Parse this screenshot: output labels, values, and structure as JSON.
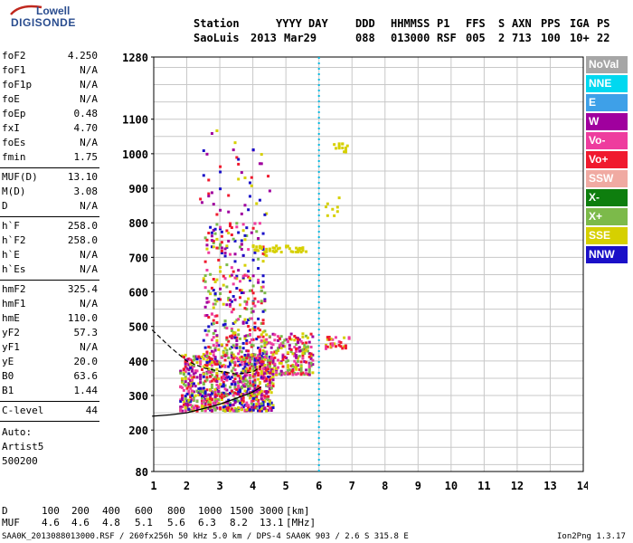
{
  "logo": {
    "line1": "Lowell",
    "line2": "DIGISONDE"
  },
  "header": {
    "labels": [
      "Station",
      "YYYY",
      "DAY",
      "DDD",
      "HHMMSS",
      "P1",
      "FFS",
      "S",
      "AXN",
      "PPS",
      "IGA",
      "PS"
    ],
    "values": [
      "SaoLuis",
      "2013",
      "Mar29",
      "088",
      "013000",
      "RSF",
      "005",
      "2",
      "713",
      "100",
      "10+",
      "22"
    ]
  },
  "params": [
    {
      "group": [
        {
          "k": "foF2",
          "v": "4.250"
        },
        {
          "k": "foF1",
          "v": "N/A"
        },
        {
          "k": "foF1p",
          "v": "N/A"
        },
        {
          "k": "foE",
          "v": "N/A"
        },
        {
          "k": "foEp",
          "v": "0.48"
        },
        {
          "k": "fxI",
          "v": "4.70"
        },
        {
          "k": "foEs",
          "v": "N/A"
        },
        {
          "k": "fmin",
          "v": "1.75"
        }
      ]
    },
    {
      "group": [
        {
          "k": "MUF(D)",
          "v": "13.10"
        },
        {
          "k": "M(D)",
          "v": "3.08"
        },
        {
          "k": "D",
          "v": "N/A"
        }
      ]
    },
    {
      "group": [
        {
          "k": "h`F",
          "v": "258.0"
        },
        {
          "k": "h`F2",
          "v": "258.0"
        },
        {
          "k": "h`E",
          "v": "N/A"
        },
        {
          "k": "h`Es",
          "v": "N/A"
        }
      ]
    },
    {
      "group": [
        {
          "k": "hmF2",
          "v": "325.4"
        },
        {
          "k": "hmF1",
          "v": "N/A"
        },
        {
          "k": "hmE",
          "v": "110.0"
        },
        {
          "k": "yF2",
          "v": "57.3"
        },
        {
          "k": "yF1",
          "v": "N/A"
        },
        {
          "k": "yE",
          "v": "20.0"
        },
        {
          "k": "B0",
          "v": "63.6"
        },
        {
          "k": "B1",
          "v": "1.44"
        }
      ]
    },
    {
      "group": [
        {
          "k": "C-level",
          "v": "44"
        }
      ]
    }
  ],
  "side_notes": [
    "Auto:",
    "Artist5",
    "500200"
  ],
  "legend": [
    {
      "label": "NoVal",
      "color": "#a6a6a6"
    },
    {
      "label": "NNE",
      "color": "#00d8f0"
    },
    {
      "label": "E",
      "color": "#3ea0e8"
    },
    {
      "label": "W",
      "color": "#a0009e"
    },
    {
      "label": "Vo-",
      "color": "#ee3c9e"
    },
    {
      "label": "Vo+",
      "color": "#f01a2e"
    },
    {
      "label": "SSW",
      "color": "#f0aaa2"
    },
    {
      "label": "X-",
      "color": "#0e7e0e"
    },
    {
      "label": "X+",
      "color": "#7cba4a"
    },
    {
      "label": "SSE",
      "color": "#d6d000"
    },
    {
      "label": "NNW",
      "color": "#1a10c8"
    }
  ],
  "footer": {
    "d_label": "D",
    "d_values": [
      "100",
      "200",
      "400",
      "600",
      "800",
      "1000",
      "1500",
      "3000",
      "[km]"
    ],
    "muf_label": "MUF",
    "muf_values": [
      "4.6",
      "4.6",
      "4.8",
      "5.1",
      "5.6",
      "6.3",
      "8.2",
      "13.1",
      "[MHz]"
    ],
    "bottom_line": "SAA0K_2013088013000.RSF / 260fx256h 50 kHz 5.0 km / DPS-4 SAA0K 903 / 2.6 S 315.8 E",
    "version": "Ion2Png 1.3.17"
  },
  "chart_data": {
    "type": "scatter",
    "x_ticks": [
      1,
      2,
      3,
      4,
      5,
      6,
      7,
      8,
      9,
      10,
      11,
      12,
      13,
      14
    ],
    "y_ticks": [
      80,
      200,
      300,
      400,
      500,
      600,
      700,
      800,
      900,
      1000,
      1100,
      1280
    ],
    "xlim": [
      1,
      14
    ],
    "ylim": [
      80,
      1280
    ],
    "grid": true,
    "marker_freq": 6.0,
    "trace_curve": [
      [
        0.95,
        240
      ],
      [
        1.5,
        244
      ],
      [
        2.0,
        250
      ],
      [
        2.5,
        262
      ],
      [
        3.0,
        275
      ],
      [
        3.5,
        292
      ],
      [
        4.0,
        310
      ],
      [
        4.25,
        325
      ]
    ],
    "dashed_curve": [
      [
        0.95,
        490
      ],
      [
        1.5,
        440
      ],
      [
        2.0,
        400
      ],
      [
        2.5,
        380
      ],
      [
        3.0,
        370
      ],
      [
        3.5,
        362
      ],
      [
        4.0,
        368
      ],
      [
        4.25,
        385
      ]
    ],
    "clusters": [
      {
        "xr": [
          1.8,
          4.6
        ],
        "yr": [
          255,
          420
        ],
        "n": 900,
        "colors": [
          "#f01a2e",
          "#ee3c9e",
          "#a0009e",
          "#1a10c8",
          "#d6d000",
          "#7cba4a"
        ]
      },
      {
        "xr": [
          2.5,
          4.4
        ],
        "yr": [
          400,
          800
        ],
        "n": 380,
        "colors": [
          "#f01a2e",
          "#ee3c9e",
          "#a0009e",
          "#1a10c8",
          "#d6d000",
          "#7cba4a"
        ]
      },
      {
        "xr": [
          4.2,
          5.8
        ],
        "yr": [
          360,
          480
        ],
        "n": 260,
        "colors": [
          "#d6d000",
          "#f01a2e",
          "#ee3c9e",
          "#7cba4a",
          "#a0009e"
        ]
      },
      {
        "xr": [
          4.0,
          5.6
        ],
        "yr": [
          715,
          735
        ],
        "n": 45,
        "colors": [
          "#d6d000"
        ]
      },
      {
        "xr": [
          6.2,
          6.9
        ],
        "yr": [
          435,
          470
        ],
        "n": 30,
        "colors": [
          "#d6d000",
          "#f01a2e",
          "#ee3c9e"
        ]
      },
      {
        "xr": [
          6.4,
          6.9
        ],
        "yr": [
          1005,
          1030
        ],
        "n": 14,
        "colors": [
          "#d6d000"
        ]
      },
      {
        "xr": [
          2.4,
          4.6
        ],
        "yr": [
          820,
          1080
        ],
        "n": 45,
        "colors": [
          "#d6d000",
          "#f01a2e",
          "#a0009e",
          "#1a10c8"
        ]
      },
      {
        "xr": [
          6.2,
          6.6
        ],
        "yr": [
          820,
          880
        ],
        "n": 8,
        "colors": [
          "#d6d000"
        ]
      }
    ]
  }
}
